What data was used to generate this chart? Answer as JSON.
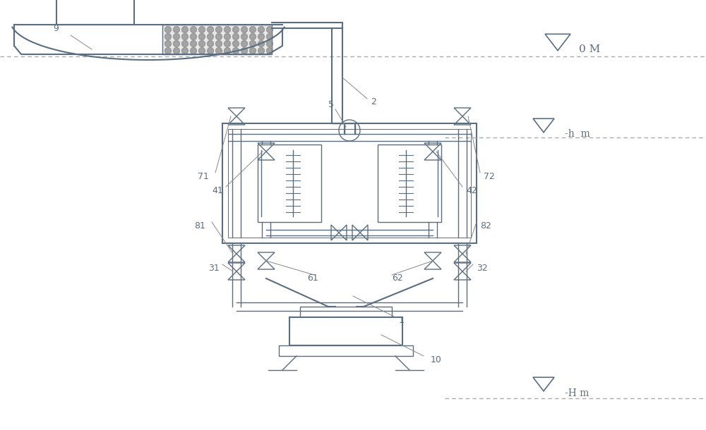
{
  "bg_color": "#ffffff",
  "line_color": "#5a6e80",
  "label_color": "#5a6e80",
  "dashed_color": "#aaaaaa",
  "label_0M": "0 M",
  "label_hm": "-h  m",
  "label_Hm": "-H m",
  "num_9": "9",
  "num_2": "2",
  "num_5": "5",
  "num_71": "71",
  "num_41": "41",
  "num_81": "81",
  "num_31": "31",
  "num_61": "61",
  "num_62": "62",
  "num_32": "32",
  "num_82": "82",
  "num_42": "42",
  "num_72": "72",
  "num_1": "1",
  "num_10": "10"
}
